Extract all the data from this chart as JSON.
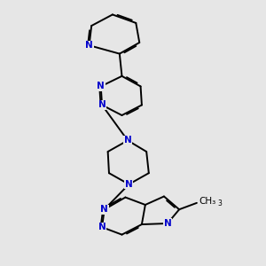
{
  "bg_color": "#e6e6e6",
  "bond_color": "#000000",
  "atom_color": "#0000cc",
  "lw": 1.4,
  "dbl_off": 0.035,
  "fs": 7.5,
  "figsize": [
    3.0,
    3.0
  ],
  "dpi": 100,
  "xlim": [
    -1.2,
    2.2
  ],
  "ylim": [
    -0.3,
    6.3
  ]
}
